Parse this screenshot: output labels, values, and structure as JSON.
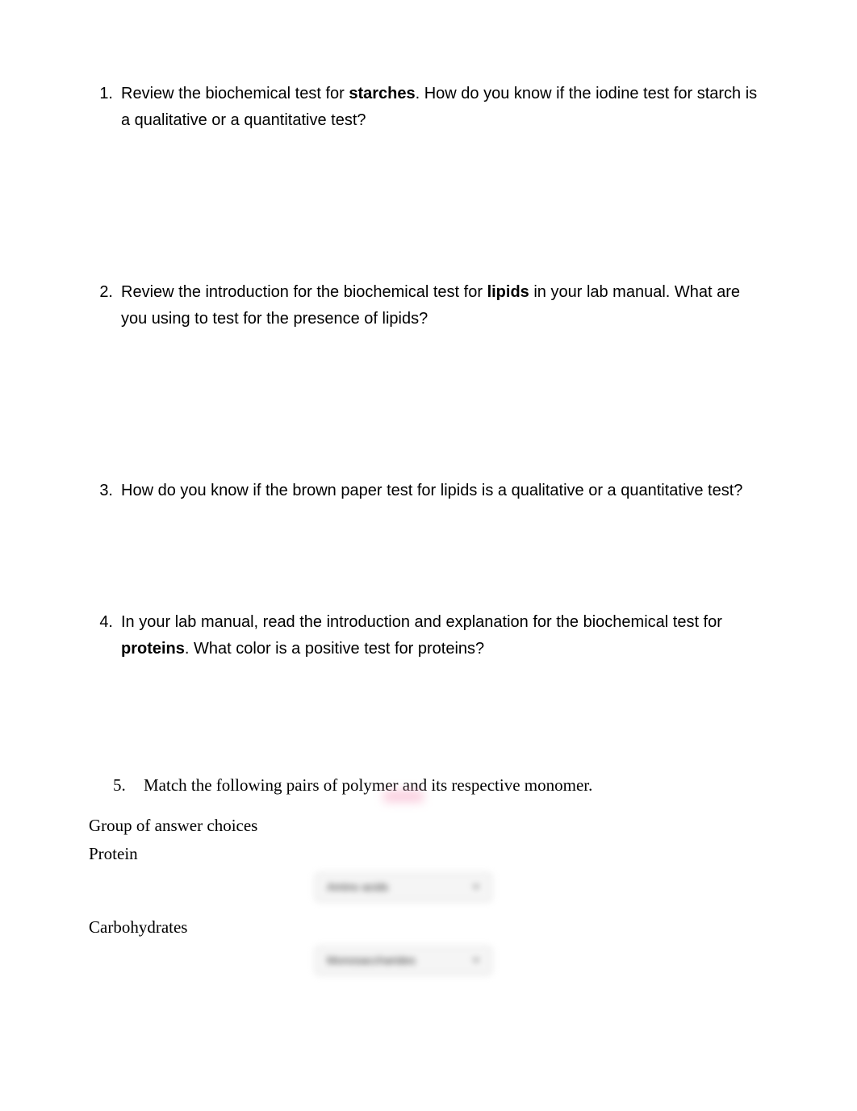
{
  "questions": {
    "q1": {
      "number": "1.",
      "text_before_bold": "Review the biochemical test for ",
      "bold_word": "starches",
      "text_after_bold": ".  How do you know if the iodine test for starch is a qualitative or a quantitative test?"
    },
    "q2": {
      "number": "2.",
      "text_before_bold": "Review the introduction for the biochemical test for ",
      "bold_word": "lipids",
      "text_after_bold": " in your lab manual. What are you using to test for the presence of lipids?"
    },
    "q3": {
      "number": "3.",
      "text": "How do you know if the brown paper test for lipids is a qualitative or a quantitative test?"
    },
    "q4": {
      "number": "4.",
      "text_before_bold": "In your lab manual, read the introduction and explanation for the biochemical test for ",
      "bold_word": "proteins",
      "text_after_bold": ".  What color is a positive test for proteins?"
    },
    "q5": {
      "number": "5.",
      "text": "Match the following pairs of polymer and its respective monomer."
    }
  },
  "group_label": "Group of answer choices",
  "polymers": {
    "protein": {
      "label": "Protein",
      "dropdown_value": "Amino acids"
    },
    "carbohydrates": {
      "label": "Carbohydrates",
      "dropdown_value": "Monosaccharides"
    }
  },
  "colors": {
    "background": "#ffffff",
    "text": "#000000",
    "dropdown_bg": "#f5f5f5",
    "dropdown_border": "#e0e0e0",
    "dropdown_text": "#333333",
    "pink_blur": "#f8b8d0"
  },
  "typography": {
    "question_fontsize": 20,
    "q5_fontsize": 21,
    "dropdown_fontsize": 14,
    "question_font": "Verdana",
    "q5_font": "Times New Roman"
  }
}
